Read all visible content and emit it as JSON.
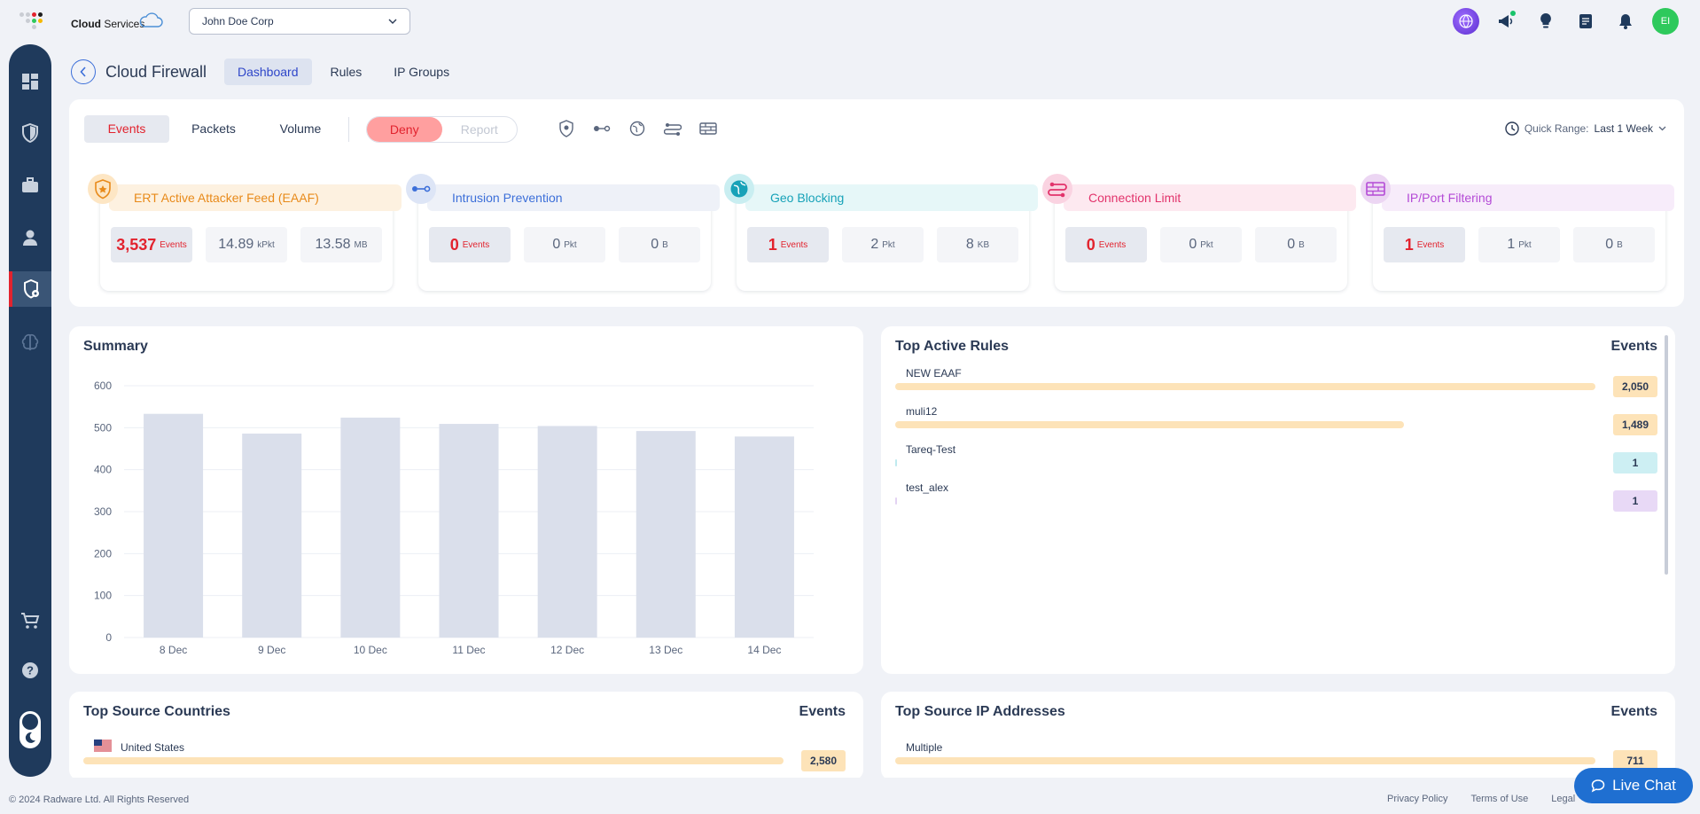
{
  "brand": {
    "name_bold": "Cloud",
    "name_rest": "Services"
  },
  "account": {
    "selected": "John Doe Corp"
  },
  "user": {
    "initials": "EI"
  },
  "page": {
    "title": "Cloud Firewall",
    "tabs": [
      "Dashboard",
      "Rules",
      "IP Groups"
    ],
    "active_tab": "Dashboard"
  },
  "toolbar": {
    "metric_tabs": [
      "Events",
      "Packets",
      "Volume"
    ],
    "active_metric": "Events",
    "deny_label": "Deny",
    "report_label": "Report",
    "quick_range_label": "Quick Range:",
    "quick_range_value": "Last 1 Week"
  },
  "stat_cards": [
    {
      "title": "ERT Active Attacker Feed (EAAF)",
      "events": "3,537",
      "events_unit": "Events",
      "packets": "14.89",
      "packets_unit": "kPkt",
      "volume": "13.58",
      "volume_unit": "MB",
      "color": "#e88a1a",
      "bg": "#fdf1e0",
      "icon_bg": "#fde6c4"
    },
    {
      "title": "Intrusion Prevention",
      "events": "0",
      "events_unit": "Events",
      "packets": "0",
      "packets_unit": "Pkt",
      "volume": "0",
      "volume_unit": "B",
      "color": "#3c6fd9",
      "bg": "#eef1f8",
      "icon_bg": "#dde5f6"
    },
    {
      "title": "Geo Blocking",
      "events": "1",
      "events_unit": "Events",
      "packets": "2",
      "packets_unit": "Pkt",
      "volume": "8",
      "volume_unit": "KB",
      "color": "#17a2b8",
      "bg": "#e6f7f8",
      "icon_bg": "#c9eef1"
    },
    {
      "title": "Connection Limit",
      "events": "0",
      "events_unit": "Events",
      "packets": "0",
      "packets_unit": "Pkt",
      "volume": "0",
      "volume_unit": "B",
      "color": "#e2336b",
      "bg": "#fde9f0",
      "icon_bg": "#fad3e1"
    },
    {
      "title": "IP/Port Filtering",
      "events": "1",
      "events_unit": "Events",
      "packets": "1",
      "packets_unit": "Pkt",
      "volume": "0",
      "volume_unit": "B",
      "color": "#b44ad6",
      "bg": "#f7ecfa",
      "icon_bg": "#ecd6f3"
    }
  ],
  "summary": {
    "title": "Summary",
    "chart_data": {
      "type": "bar",
      "title": "Summary",
      "categories": [
        "8 Dec",
        "9 Dec",
        "10 Dec",
        "11 Dec",
        "12 Dec",
        "13 Dec",
        "14 Dec"
      ],
      "values": [
        533,
        486,
        524,
        509,
        504,
        492,
        479
      ],
      "ylim": [
        0,
        600
      ],
      "yticks": [
        0,
        100,
        200,
        300,
        400,
        500,
        600
      ],
      "xlabel": "",
      "ylabel": "",
      "grid": true
    }
  },
  "top_rules": {
    "title": "Top Active Rules",
    "col_label": "Events",
    "rows": [
      {
        "name": "NEW EAAF",
        "value": "2,050",
        "fraction": 1.0,
        "bar_color": "#fde3b8",
        "badge_color": "#fde3b8"
      },
      {
        "name": "muli12",
        "value": "1,489",
        "fraction": 0.726,
        "bar_color": "#fde3b8",
        "badge_color": "#fde3b8"
      },
      {
        "name": "Tareq-Test",
        "value": "1",
        "fraction": 0.0005,
        "bar_color": "#bfeaef",
        "badge_color": "#cdeff3"
      },
      {
        "name": "test_alex",
        "value": "1",
        "fraction": 0.0005,
        "bar_color": "#e3d3f3",
        "badge_color": "#e8d9f6"
      }
    ]
  },
  "top_countries": {
    "title": "Top Source Countries",
    "col_label": "Events",
    "rows": [
      {
        "name": "United States",
        "value": "2,580",
        "fraction": 1.0
      }
    ]
  },
  "top_ips": {
    "title": "Top Source IP Addresses",
    "col_label": "Events",
    "rows": [
      {
        "name": "Multiple",
        "value": "711",
        "fraction": 1.0
      }
    ]
  },
  "footer": {
    "copyright": "© 2024 Radware Ltd. All Rights Reserved",
    "privacy": "Privacy Policy",
    "terms": "Terms of Use",
    "legal": "Legal"
  },
  "live_chat": {
    "label": "Live Chat"
  }
}
